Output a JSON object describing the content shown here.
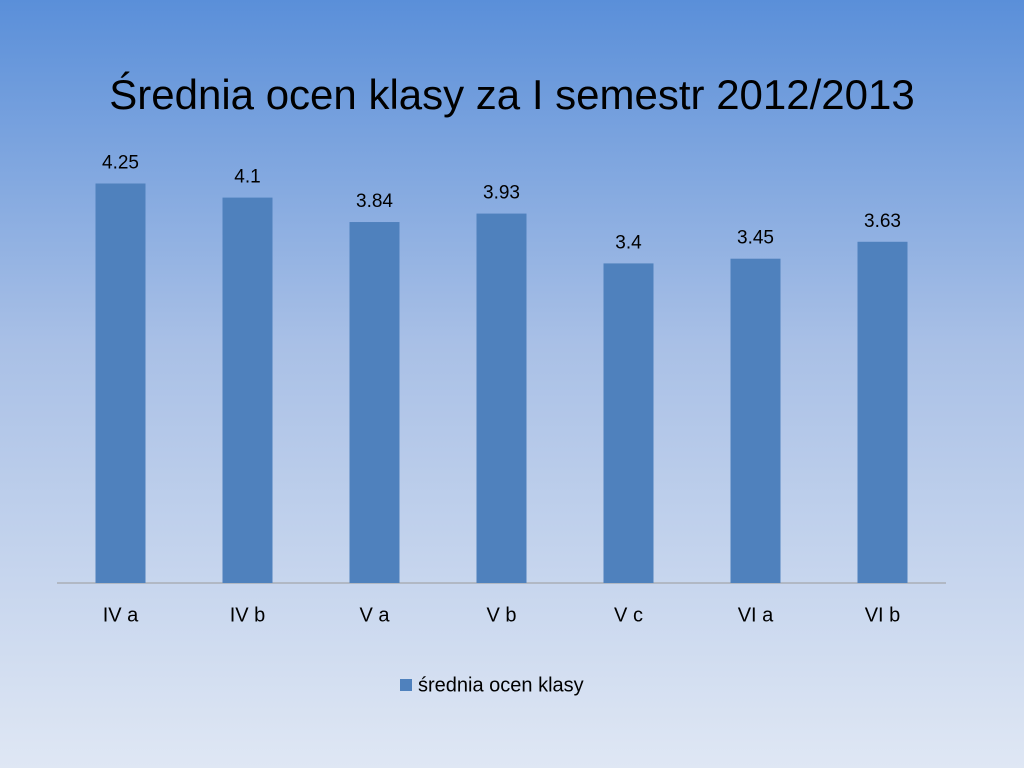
{
  "chart_data": {
    "type": "bar",
    "title": "Średnia ocen klasy za I semestr 2012/2013",
    "categories": [
      "IV a",
      "IV b",
      "V a",
      "V b",
      "V c",
      "VI a",
      "VI b"
    ],
    "series": [
      {
        "name": "średnia ocen klasy",
        "color": "#4f81bd",
        "values": [
          4.25,
          4.1,
          3.84,
          3.93,
          3.4,
          3.45,
          3.63
        ]
      }
    ],
    "ylim": [
      0,
      4.5
    ],
    "legend": "bottom"
  }
}
